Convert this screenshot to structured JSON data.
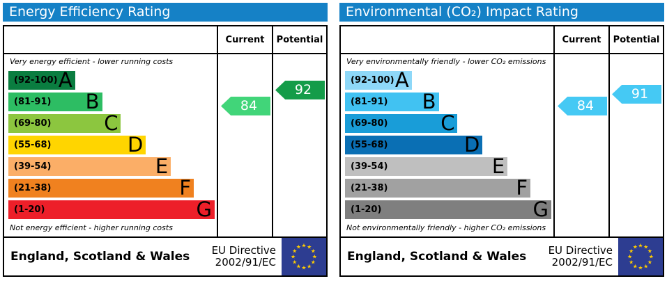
{
  "chart_data": [
    {
      "type": "bar",
      "title": "Energy Efficiency Rating",
      "columns": {
        "current": "Current",
        "potential": "Potential"
      },
      "top_note": "Very energy efficient - lower running costs",
      "bottom_note": "Not energy efficient - higher running costs",
      "bands": [
        {
          "letter": "A",
          "label": "(92-100)",
          "min": 92,
          "max": 100,
          "color": "#0a7d40",
          "width_pct": 32
        },
        {
          "letter": "B",
          "label": "(81-91)",
          "min": 81,
          "max": 91,
          "color": "#2dbd63",
          "width_pct": 45
        },
        {
          "letter": "C",
          "label": "(69-80)",
          "min": 69,
          "max": 80,
          "color": "#8cc63f",
          "width_pct": 54
        },
        {
          "letter": "D",
          "label": "(55-68)",
          "min": 55,
          "max": 68,
          "color": "#ffd500",
          "width_pct": 66
        },
        {
          "letter": "E",
          "label": "(39-54)",
          "min": 39,
          "max": 54,
          "color": "#fbae67",
          "width_pct": 78
        },
        {
          "letter": "F",
          "label": "(21-38)",
          "min": 21,
          "max": 38,
          "color": "#f0811f",
          "width_pct": 89
        },
        {
          "letter": "G",
          "label": "(1-20)",
          "min": 1,
          "max": 20,
          "color": "#ed1f29",
          "width_pct": 99
        }
      ],
      "current": {
        "value": 84,
        "color": "#41d579"
      },
      "potential": {
        "value": 92,
        "color": "#149c49"
      },
      "footer": {
        "region": "England, Scotland & Wales",
        "directive_line1": "EU Directive",
        "directive_line2": "2002/91/EC"
      }
    },
    {
      "type": "bar",
      "title": "Environmental (CO₂) Impact Rating",
      "columns": {
        "current": "Current",
        "potential": "Potential"
      },
      "top_note": "Very environmentally friendly - lower CO₂ emissions",
      "bottom_note": "Not environmentally friendly - higher CO₂ emissions",
      "bands": [
        {
          "letter": "A",
          "label": "(92-100)",
          "min": 92,
          "max": 100,
          "color": "#8ed8f8",
          "width_pct": 32
        },
        {
          "letter": "B",
          "label": "(81-91)",
          "min": 81,
          "max": 91,
          "color": "#41c2f2",
          "width_pct": 45
        },
        {
          "letter": "C",
          "label": "(69-80)",
          "min": 69,
          "max": 80,
          "color": "#199dd8",
          "width_pct": 54
        },
        {
          "letter": "D",
          "label": "(55-68)",
          "min": 55,
          "max": 68,
          "color": "#0a6fb4",
          "width_pct": 66
        },
        {
          "letter": "E",
          "label": "(39-54)",
          "min": 39,
          "max": 54,
          "color": "#bfbfbf",
          "width_pct": 78
        },
        {
          "letter": "F",
          "label": "(21-38)",
          "min": 21,
          "max": 38,
          "color": "#a1a1a1",
          "width_pct": 89
        },
        {
          "letter": "G",
          "label": "(1-20)",
          "min": 1,
          "max": 20,
          "color": "#7f7f7f",
          "width_pct": 99
        }
      ],
      "current": {
        "value": 84,
        "color": "#45c9f4"
      },
      "potential": {
        "value": 91,
        "color": "#45c9f4"
      },
      "footer": {
        "region": "England, Scotland & Wales",
        "directive_line1": "EU Directive",
        "directive_line2": "2002/91/EC"
      }
    }
  ],
  "colors": {
    "header_blue": "#1581c6",
    "flag_blue": "#2d3d91",
    "flag_star_yellow": "#ffcc00",
    "border": "#000000"
  }
}
